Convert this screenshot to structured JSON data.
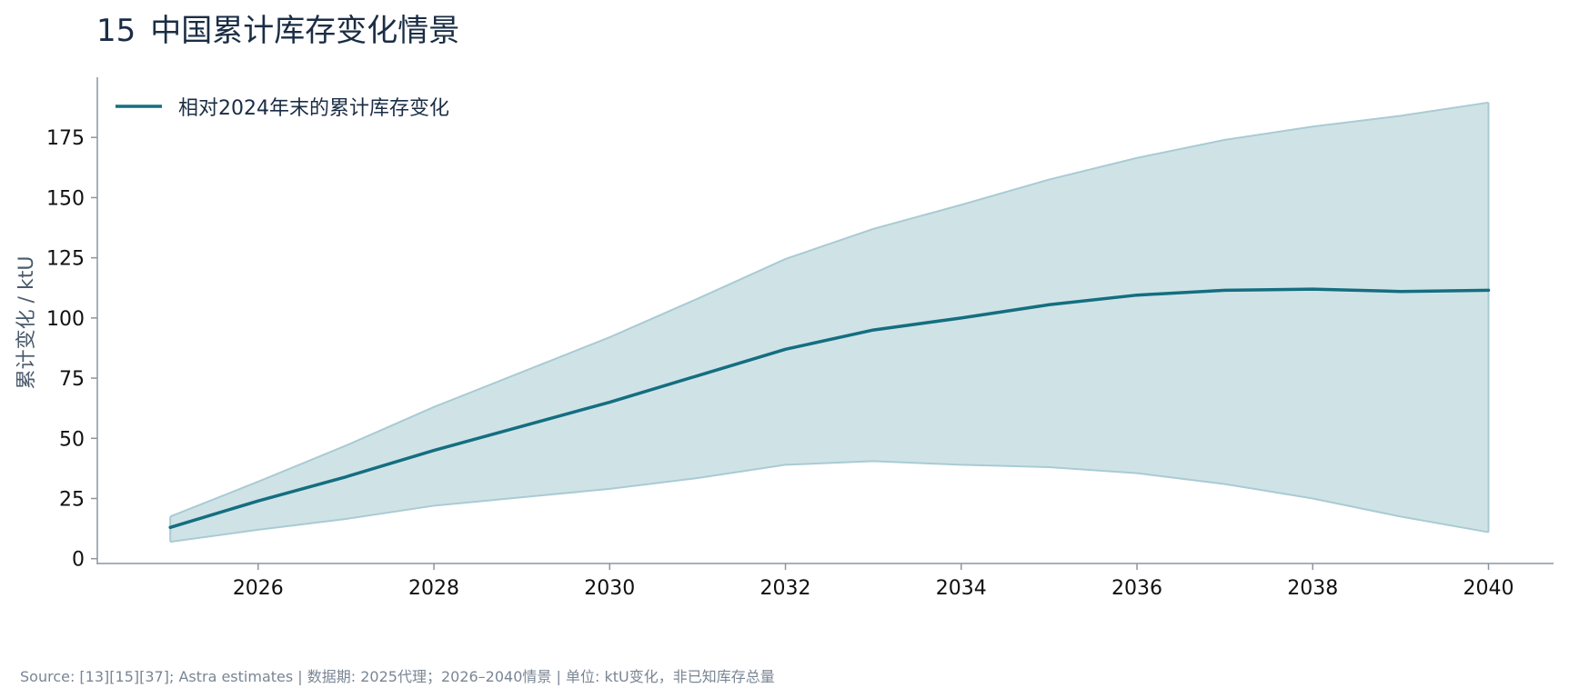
{
  "header": {
    "number": "15",
    "title": "中国累计库存变化情景"
  },
  "colors": {
    "line": "#146e80",
    "band": "#cfe3e7",
    "band_edge": "#a9cbd3",
    "axis": "#8a96a3",
    "text": "#1b2d45"
  },
  "chart_data": {
    "type": "line",
    "title": "",
    "xlabel": "",
    "ylabel": "累计变化 / ktU",
    "xlim": [
      2024.17,
      2040.74
    ],
    "ylim": [
      -2,
      200
    ],
    "xticks": [
      2026,
      2028,
      2030,
      2032,
      2034,
      2036,
      2038,
      2040
    ],
    "yticks": [
      0,
      25,
      50,
      75,
      100,
      125,
      150,
      175
    ],
    "legend": {
      "position": "top-left",
      "entries": [
        "相对2024年末的累计库存变化"
      ]
    },
    "grid": false,
    "x": [
      2025,
      2026,
      2027,
      2028,
      2029,
      2030,
      2031,
      2032,
      2033,
      2034,
      2035,
      2036,
      2037,
      2038,
      2039,
      2040
    ],
    "series": [
      {
        "name": "相对2024年末的累计库存变化",
        "values": [
          13,
          24,
          34,
          45,
          55,
          65,
          76,
          87,
          95,
          100,
          105.5,
          109.5,
          111.5,
          112,
          111,
          111.5
        ]
      }
    ],
    "band": {
      "lower": [
        7,
        12,
        16.5,
        22,
        25.5,
        29,
        33.5,
        39,
        40.5,
        39,
        38,
        35.5,
        31,
        25,
        17.5,
        11
      ],
      "upper": [
        17.5,
        32,
        47,
        63,
        77.5,
        92,
        108,
        124.5,
        137,
        147,
        157.5,
        166.5,
        174,
        179.5,
        184,
        189.5
      ]
    }
  },
  "footer": {
    "source": "Source: [13][15][37]; Astra estimates | 数据期: 2025代理；2026–2040情景 | 单位: ktU变化，非已知库存总量"
  }
}
